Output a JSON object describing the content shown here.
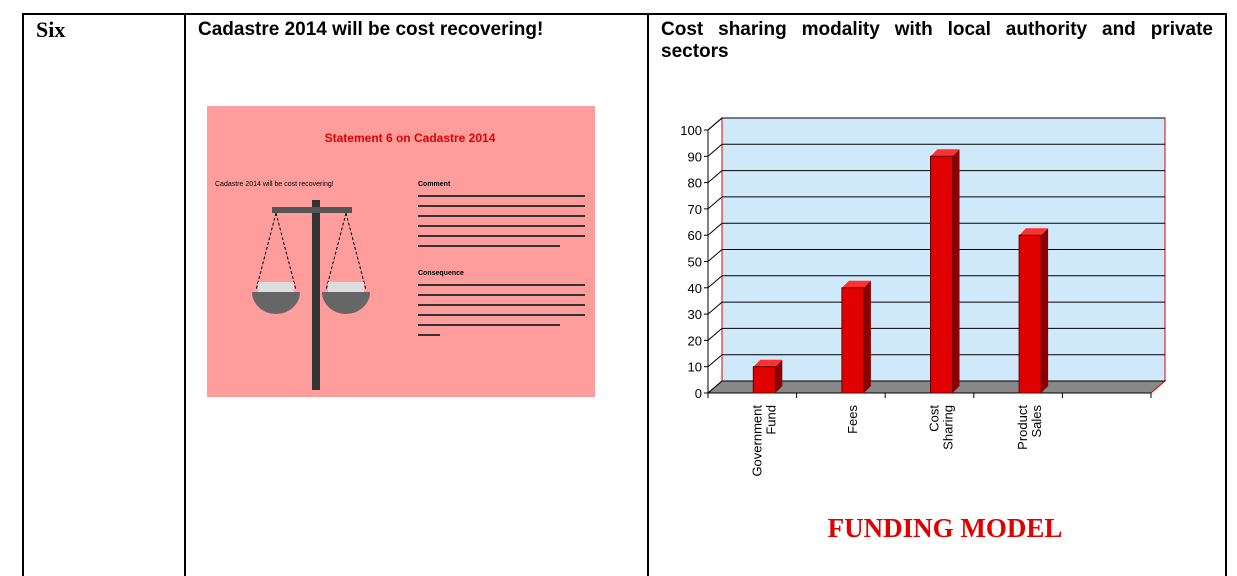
{
  "table": {
    "rows": [
      [
        "Six",
        "Cadastre 2014 will be cost recovering!",
        "Cost sharing modality with local authority and private sectors"
      ]
    ]
  },
  "slide": {
    "title": "Statement 6 on Cadastre 2014",
    "statement": "Cadastre 2014 will be cost recovering!",
    "comment_heading": "Comment",
    "consequence_heading": "Consequence"
  },
  "chart_data": {
    "type": "bar",
    "title": "FUNDING MODEL",
    "categories": [
      "Government Fund",
      "Fees",
      "Cost Sharing",
      "Product Sales"
    ],
    "values": [
      10,
      40,
      90,
      60
    ],
    "color": "#e00000",
    "ylim": [
      0,
      100
    ],
    "yticks": [
      0,
      10,
      20,
      30,
      40,
      50,
      60,
      70,
      80,
      90,
      100
    ],
    "grid": true
  }
}
